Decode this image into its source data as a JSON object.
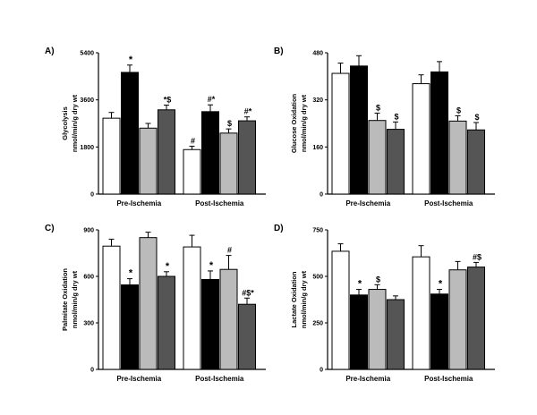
{
  "chart_data": [
    {
      "type": "bar",
      "panel": "A)",
      "ylabel_line1": "Glycolysis",
      "ylabel_line2": "nmol/min/g dry wt",
      "ylim": [
        0,
        5400
      ],
      "yticks": [
        0,
        1800,
        3600,
        5400
      ],
      "categories": [
        "Pre-Ischemia",
        "Post-Ischemia"
      ],
      "series": [
        {
          "name": "group 1",
          "color": "#ffffff",
          "values": [
            2900,
            1700
          ],
          "errors": [
            220,
            130
          ]
        },
        {
          "name": "group 2",
          "color": "#000000",
          "values": [
            4650,
            3150
          ],
          "errors": [
            280,
            260
          ]
        },
        {
          "name": "group 3",
          "color": "#bbbbbb",
          "values": [
            2520,
            2330
          ],
          "errors": [
            180,
            160
          ]
        },
        {
          "name": "group 4",
          "color": "#555555",
          "values": [
            3220,
            2800
          ],
          "errors": [
            180,
            150
          ]
        }
      ],
      "markers": [
        [
          "",
          "*",
          "",
          "*$"
        ],
        [
          "#",
          "#*",
          "$",
          "#*"
        ]
      ]
    },
    {
      "type": "bar",
      "panel": "B)",
      "ylabel_line1": "Glucose Oxidation",
      "ylabel_line2": "nmol/min/g dry wt",
      "ylim": [
        0,
        480
      ],
      "yticks": [
        0,
        160,
        320,
        480
      ],
      "categories": [
        "Pre-Ischemia",
        "Post-Ischemia"
      ],
      "series": [
        {
          "name": "group 1",
          "color": "#ffffff",
          "values": [
            410,
            375
          ],
          "errors": [
            35,
            30
          ]
        },
        {
          "name": "group 2",
          "color": "#000000",
          "values": [
            435,
            415
          ],
          "errors": [
            35,
            35
          ]
        },
        {
          "name": "group 3",
          "color": "#bbbbbb",
          "values": [
            250,
            248
          ],
          "errors": [
            25,
            18
          ]
        },
        {
          "name": "group 4",
          "color": "#555555",
          "values": [
            220,
            218
          ],
          "errors": [
            25,
            25
          ]
        }
      ],
      "markers": [
        [
          "",
          "",
          "$",
          "$"
        ],
        [
          "",
          "",
          "$",
          "$"
        ]
      ]
    },
    {
      "type": "bar",
      "panel": "C)",
      "ylabel_line1": "Palmitate Oxidation",
      "ylabel_line2": "nmol/min/g dry wt",
      "ylim": [
        0,
        900
      ],
      "yticks": [
        0,
        300,
        600,
        900
      ],
      "categories": [
        "Pre-Ischemia",
        "Post-Ischemia"
      ],
      "series": [
        {
          "name": "group 1",
          "color": "#ffffff",
          "values": [
            795,
            790
          ],
          "errors": [
            45,
            75
          ]
        },
        {
          "name": "group 2",
          "color": "#000000",
          "values": [
            545,
            580
          ],
          "errors": [
            40,
            55
          ]
        },
        {
          "name": "group 3",
          "color": "#bbbbbb",
          "values": [
            850,
            645
          ],
          "errors": [
            35,
            90
          ]
        },
        {
          "name": "group 4",
          "color": "#555555",
          "values": [
            600,
            420
          ],
          "errors": [
            30,
            40
          ]
        }
      ],
      "markers": [
        [
          "",
          "*",
          "",
          "*"
        ],
        [
          "",
          "*",
          "#",
          "#$*"
        ]
      ]
    },
    {
      "type": "bar",
      "panel": "D)",
      "ylabel_line1": "Lactate Oxidation",
      "ylabel_line2": "nmol/min/g dry wt",
      "ylim": [
        0,
        750
      ],
      "yticks": [
        0,
        250,
        500,
        750
      ],
      "categories": [
        "Pre-Ischemia",
        "Post-Ischemia"
      ],
      "series": [
        {
          "name": "group 1",
          "color": "#ffffff",
          "values": [
            635,
            605
          ],
          "errors": [
            40,
            60
          ]
        },
        {
          "name": "group 2",
          "color": "#000000",
          "values": [
            400,
            405
          ],
          "errors": [
            30,
            25
          ]
        },
        {
          "name": "group 3",
          "color": "#bbbbbb",
          "values": [
            430,
            535
          ],
          "errors": [
            25,
            45
          ]
        },
        {
          "name": "group 4",
          "color": "#555555",
          "values": [
            375,
            550
          ],
          "errors": [
            20,
            25
          ]
        }
      ],
      "markers": [
        [
          "",
          "*",
          "$",
          ""
        ],
        [
          "",
          "*",
          "",
          "#$"
        ]
      ]
    }
  ]
}
